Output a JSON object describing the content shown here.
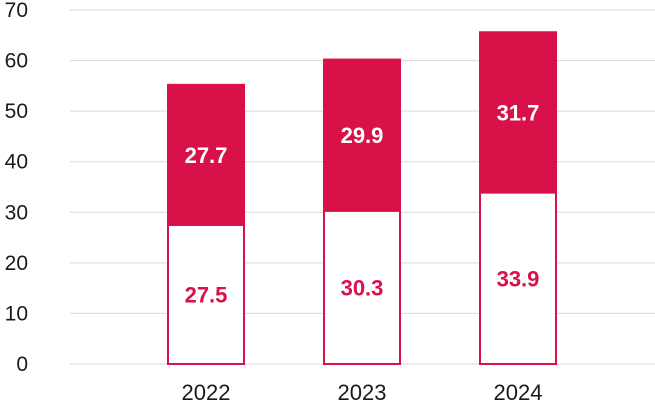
{
  "chart_data": {
    "type": "bar",
    "stacked": true,
    "categories": [
      "2022",
      "2023",
      "2024"
    ],
    "series": [
      {
        "values": [
          27.5,
          30.3,
          33.9
        ],
        "fill": "#ffffff",
        "stroke": "#d81149",
        "label_color": "#d81149"
      },
      {
        "values": [
          27.7,
          29.9,
          31.7
        ],
        "fill": "#d81149",
        "stroke": "#d81149",
        "label_color": "#ffffff"
      }
    ],
    "ylim": [
      0,
      70
    ],
    "yticks": [
      0,
      10,
      20,
      30,
      40,
      50,
      60,
      70
    ],
    "grid": true,
    "accent_color": "#d81149"
  }
}
